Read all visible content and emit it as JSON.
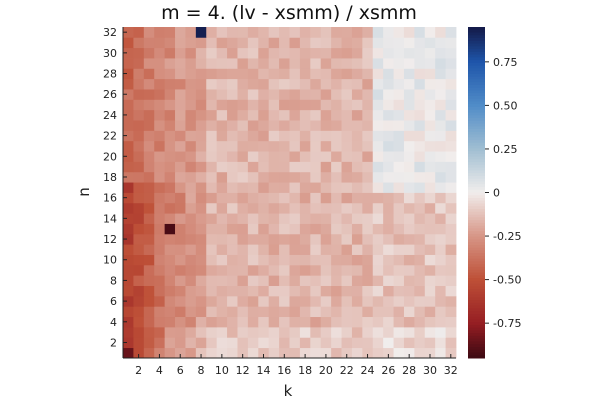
{
  "chart_data": {
    "type": "heatmap",
    "title": "m = 4. (lv - xsmm) / xsmm",
    "xlabel": "k",
    "ylabel": "n",
    "x_range": [
      1,
      32
    ],
    "y_range": [
      1,
      32
    ],
    "x_ticks": [
      "2",
      "4",
      "6",
      "8",
      "10",
      "12",
      "14",
      "16",
      "18",
      "20",
      "22",
      "24",
      "26",
      "28",
      "30",
      "32"
    ],
    "y_ticks": [
      "2",
      "4",
      "6",
      "8",
      "10",
      "12",
      "14",
      "16",
      "18",
      "20",
      "22",
      "24",
      "26",
      "28",
      "30",
      "32"
    ],
    "colorbar": {
      "range": [
        -0.95,
        0.95
      ],
      "ticks": [
        "-0.75",
        "-0.50",
        "-0.25",
        "0",
        "0.25",
        "0.50",
        "0.75"
      ],
      "colormap": "balance"
    },
    "grid": false,
    "description_values": "relative difference per (n,k), estimated from colors",
    "special_cells": [
      {
        "n": 32,
        "k": 8,
        "value": 0.93
      },
      {
        "n": 13,
        "k": 5,
        "value": -0.92
      },
      {
        "n": 1,
        "k": 1,
        "value": -0.85
      }
    ]
  }
}
